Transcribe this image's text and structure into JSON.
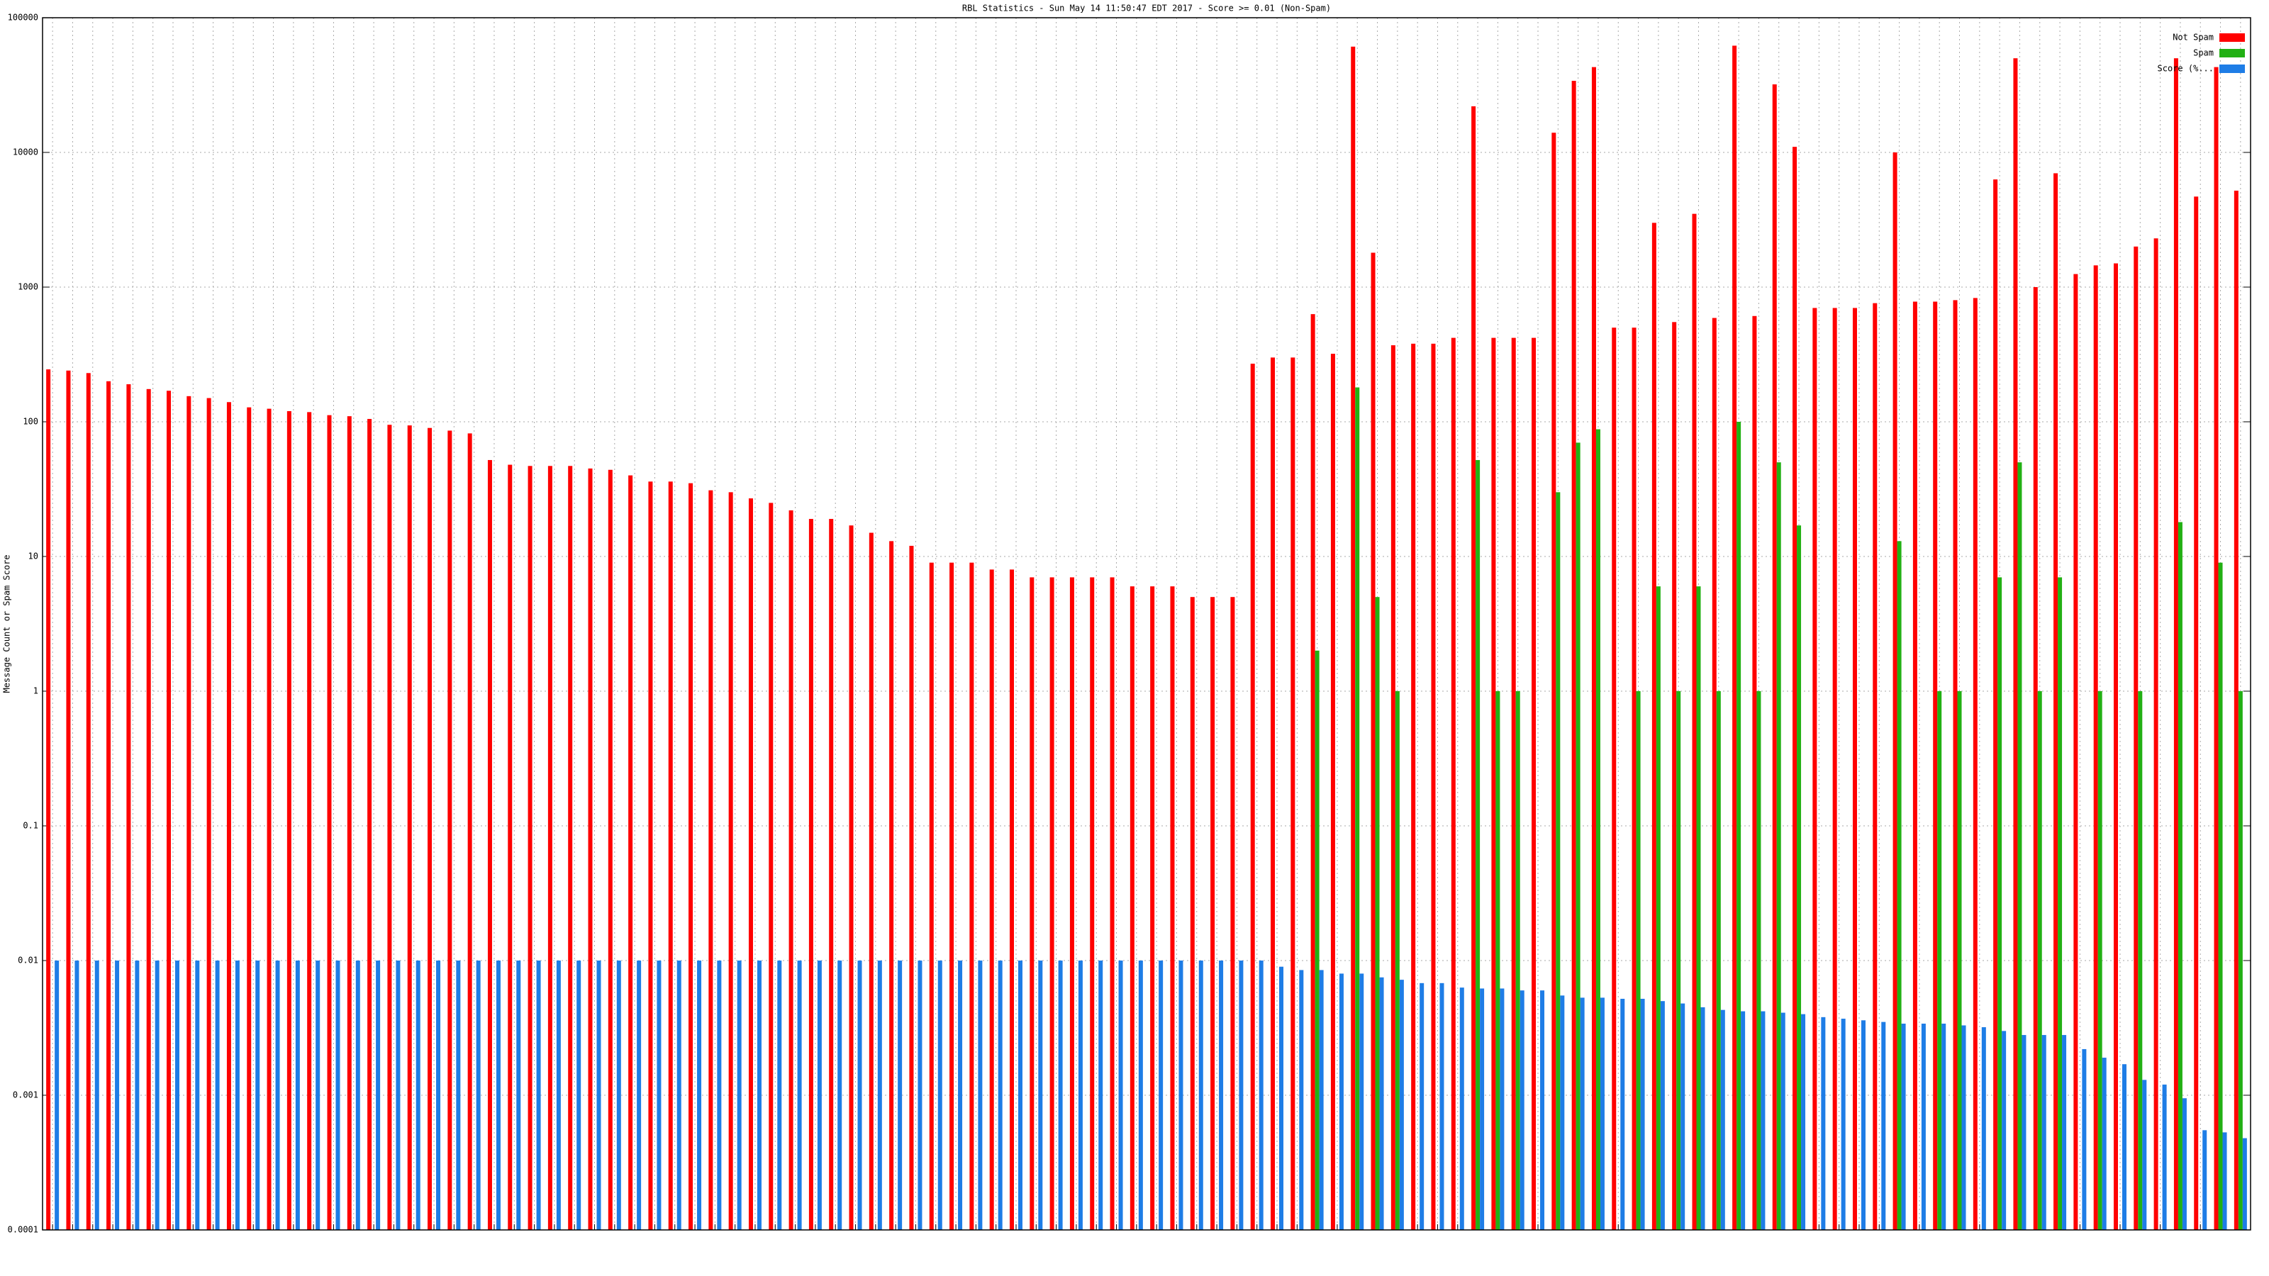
{
  "chart_data": {
    "type": "bar",
    "title": "RBL Statistics - Sun May 14 11:50:47 EDT 2017 - Score >= 0.01 (Non-Spam)",
    "y_label": "Message Count or Spam Score",
    "log_y": true,
    "grid": true,
    "legend": "upper right",
    "ylim": [
      0.0001,
      100000
    ],
    "yticks": [
      0.0001,
      0.001,
      0.01,
      0.1,
      1,
      10,
      100,
      1000,
      10000,
      100000
    ],
    "categories": [
      null,
      null,
      null,
      null,
      null,
      null,
      null,
      null,
      null,
      null,
      null,
      null,
      null,
      null,
      null,
      null,
      null,
      null,
      null,
      null,
      null,
      null,
      null,
      null,
      null,
      null,
      null,
      null,
      null,
      null,
      null,
      null,
      null,
      null,
      null,
      null,
      null,
      null,
      null,
      null,
      null,
      null,
      null,
      null,
      null,
      null,
      null,
      null,
      null,
      null,
      null,
      null,
      null,
      null,
      null,
      null,
      null,
      null,
      null,
      null,
      null,
      null,
      null,
      null,
      null,
      null,
      null,
      null,
      null,
      null,
      null,
      null,
      null,
      null,
      null,
      null,
      null,
      null,
      null,
      null,
      null,
      null,
      null,
      null,
      null,
      null,
      null,
      null,
      null,
      null,
      null,
      null,
      null,
      null,
      null,
      null,
      null,
      null,
      null,
      null,
      null,
      null,
      null,
      null,
      null,
      null,
      null,
      null,
      null,
      null
    ],
    "series": [
      {
        "name": "Not Spam",
        "color": "#ff0000",
        "values": [
          245,
          240,
          230,
          200,
          190,
          175,
          170,
          155,
          150,
          140,
          128,
          125,
          120,
          118,
          112,
          110,
          105,
          95,
          94,
          90,
          86,
          82,
          52,
          48,
          47,
          47,
          47,
          45,
          44,
          40,
          36,
          36,
          35,
          31,
          30,
          27,
          25,
          22,
          19,
          19,
          17,
          15,
          13,
          12,
          9,
          9,
          9,
          8,
          8,
          7,
          7,
          7,
          7,
          7,
          6,
          6,
          6,
          5,
          5,
          5,
          270,
          300,
          300,
          630,
          320,
          61000,
          1800,
          370,
          380,
          380,
          420,
          22000,
          420,
          420,
          420,
          14000,
          34000,
          43000,
          500,
          500,
          3000,
          550,
          3500,
          590,
          62000,
          610,
          32000,
          11000,
          700,
          700,
          700,
          760,
          10000,
          780,
          780,
          800,
          830,
          6300,
          50000,
          1000,
          7000,
          1250,
          1450,
          1500,
          2000,
          2300,
          50000,
          4700,
          43000,
          5200
        ]
      },
      {
        "name": "Spam",
        "color": "#22b014",
        "values": [
          null,
          null,
          null,
          null,
          null,
          null,
          null,
          null,
          null,
          null,
          null,
          null,
          null,
          null,
          null,
          null,
          null,
          null,
          null,
          null,
          null,
          null,
          null,
          null,
          null,
          null,
          null,
          null,
          null,
          null,
          null,
          null,
          null,
          null,
          null,
          null,
          null,
          null,
          null,
          null,
          null,
          null,
          null,
          null,
          null,
          null,
          null,
          null,
          null,
          null,
          null,
          null,
          null,
          null,
          null,
          null,
          null,
          null,
          null,
          null,
          null,
          null,
          null,
          2,
          null,
          180,
          5,
          1,
          null,
          null,
          null,
          52,
          1,
          1,
          null,
          30,
          70,
          88,
          null,
          1,
          6,
          1,
          6,
          1,
          100,
          1,
          50,
          17,
          null,
          null,
          null,
          null,
          13,
          null,
          1,
          1,
          null,
          7,
          50,
          1,
          7,
          null,
          1,
          null,
          1,
          null,
          18,
          null,
          9,
          1
        ]
      },
      {
        "name": "Score (%...",
        "color": "#1e7de6",
        "values": [
          0.01,
          0.01,
          0.01,
          0.01,
          0.01,
          0.01,
          0.01,
          0.01,
          0.01,
          0.01,
          0.01,
          0.01,
          0.01,
          0.01,
          0.01,
          0.01,
          0.01,
          0.01,
          0.01,
          0.01,
          0.01,
          0.01,
          0.01,
          0.01,
          0.01,
          0.01,
          0.01,
          0.01,
          0.01,
          0.01,
          0.01,
          0.01,
          0.01,
          0.01,
          0.01,
          0.01,
          0.01,
          0.01,
          0.01,
          0.01,
          0.01,
          0.01,
          0.01,
          0.01,
          0.01,
          0.01,
          0.01,
          0.01,
          0.01,
          0.01,
          0.01,
          0.01,
          0.01,
          0.01,
          0.01,
          0.01,
          0.01,
          0.01,
          0.01,
          0.01,
          0.01,
          0.009,
          0.0085,
          0.0085,
          0.008,
          0.008,
          0.0075,
          0.0072,
          0.0068,
          0.0068,
          0.0063,
          0.0062,
          0.0062,
          0.006,
          0.006,
          0.0055,
          0.0053,
          0.0053,
          0.0052,
          0.0052,
          0.005,
          0.0048,
          0.0045,
          0.0043,
          0.0042,
          0.0042,
          0.0041,
          0.004,
          0.0038,
          0.0037,
          0.0036,
          0.0035,
          0.0034,
          0.0034,
          0.0034,
          0.0033,
          0.0032,
          0.003,
          0.0028,
          0.0028,
          0.0028,
          0.0022,
          0.0019,
          0.0017,
          0.0013,
          0.0012,
          0.00095,
          0.00055,
          0.00053,
          0.00048
        ]
      }
    ]
  }
}
